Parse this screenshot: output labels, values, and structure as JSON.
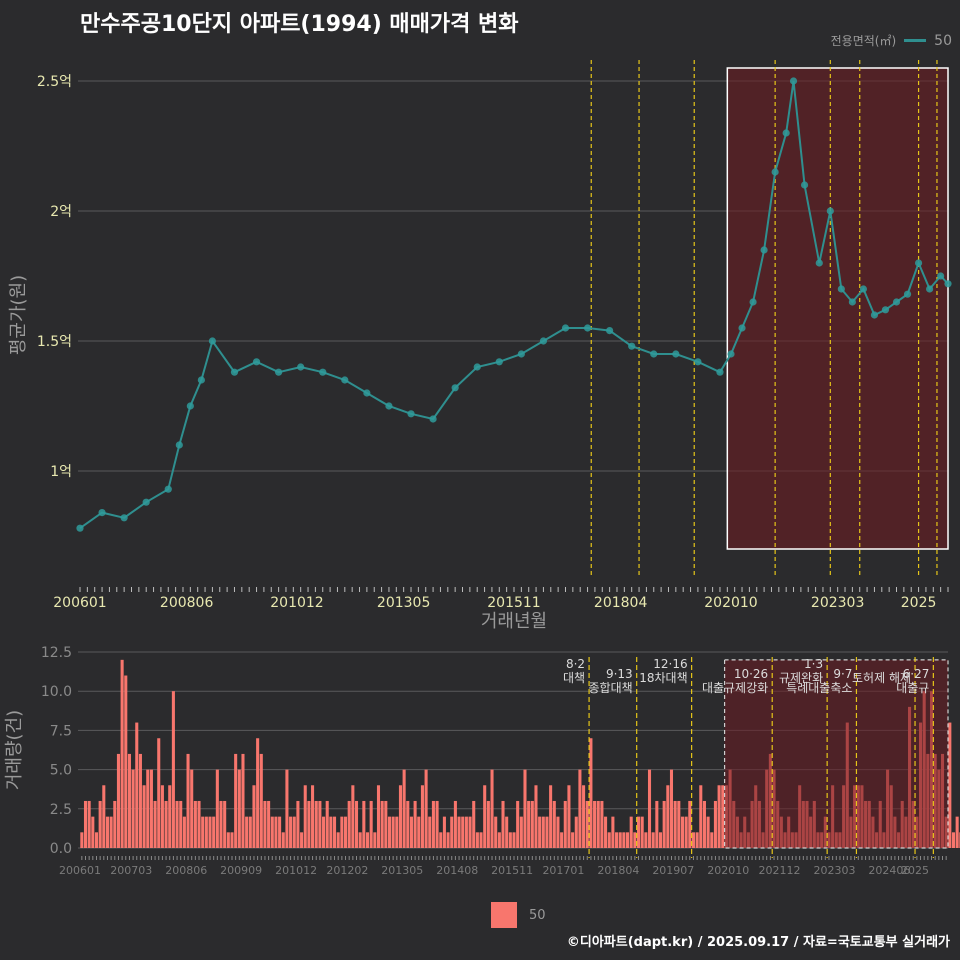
{
  "title": "만수주공10단지 아파트(1994) 매매가격 변화",
  "legend": {
    "title": "전용면적(㎡)",
    "series_label": "50"
  },
  "credit": "©디아파트(dapt.kr) / 2025.09.17 / 자료=국토교통부 실거래가",
  "colors": {
    "line": "#2f8f8f",
    "point": "#2f9b9b",
    "bar": "#f8766d",
    "policy": "#e6c619",
    "highlight": "#6b1c22"
  },
  "chart_data": [
    {
      "type": "line",
      "title": "만수주공10단지 아파트(1994) 매매가격 변화",
      "xlabel": "거래년월",
      "ylabel": "평균가(원)",
      "x_range": [
        "2006-01",
        "2025-09"
      ],
      "x_ticks": [
        "200601",
        "200806",
        "201012",
        "201305",
        "201511",
        "201804",
        "202010",
        "202303",
        "2025"
      ],
      "y_ticks": [
        {
          "value": 1.0,
          "label": "1억"
        },
        {
          "value": 1.5,
          "label": "1.5억"
        },
        {
          "value": 2.0,
          "label": "2억"
        },
        {
          "value": 2.5,
          "label": "2.5억"
        }
      ],
      "ylim": [
        0.6,
        2.6
      ],
      "highlight_period": [
        "2020-09",
        "2025-09"
      ],
      "policy_lines": [
        "2017-08",
        "2018-09",
        "2019-12",
        "2021-10",
        "2023-01",
        "2023-09",
        "2025-01",
        "2025-06"
      ],
      "series": [
        {
          "name": "50",
          "x": [
            "2006-01",
            "2006-07",
            "2007-01",
            "2007-07",
            "2008-01",
            "2008-04",
            "2008-07",
            "2008-10",
            "2009-01",
            "2009-07",
            "2010-01",
            "2010-07",
            "2011-01",
            "2011-07",
            "2012-01",
            "2012-07",
            "2013-01",
            "2013-07",
            "2014-01",
            "2014-07",
            "2015-01",
            "2015-07",
            "2016-01",
            "2016-07",
            "2017-01",
            "2017-07",
            "2018-01",
            "2018-07",
            "2019-01",
            "2019-07",
            "2020-01",
            "2020-07",
            "2020-10",
            "2021-01",
            "2021-04",
            "2021-07",
            "2021-10",
            "2022-01",
            "2022-03",
            "2022-06",
            "2022-10",
            "2023-01",
            "2023-04",
            "2023-07",
            "2023-10",
            "2024-01",
            "2024-04",
            "2024-07",
            "2024-10",
            "2025-01",
            "2025-04",
            "2025-07",
            "2025-09"
          ],
          "values": [
            0.78,
            0.84,
            0.82,
            0.88,
            0.93,
            1.1,
            1.25,
            1.35,
            1.5,
            1.38,
            1.42,
            1.38,
            1.4,
            1.38,
            1.35,
            1.3,
            1.25,
            1.22,
            1.2,
            1.32,
            1.4,
            1.42,
            1.45,
            1.5,
            1.55,
            1.55,
            1.54,
            1.48,
            1.45,
            1.45,
            1.42,
            1.38,
            1.45,
            1.55,
            1.65,
            1.85,
            2.15,
            2.3,
            2.5,
            2.1,
            1.8,
            2.0,
            1.7,
            1.65,
            1.7,
            1.6,
            1.62,
            1.65,
            1.68,
            1.8,
            1.7,
            1.75,
            1.72
          ]
        }
      ]
    },
    {
      "type": "bar",
      "xlabel": "",
      "ylabel": "거래량(건)",
      "x_range": [
        "2006-01",
        "2025-09"
      ],
      "x_ticks": [
        "200601",
        "200703",
        "200806",
        "200909",
        "201012",
        "201202",
        "201305",
        "201408",
        "201511",
        "201701",
        "201804",
        "201907",
        "202010",
        "202112",
        "202303",
        "202406",
        "2025"
      ],
      "y_ticks": [
        {
          "value": 0,
          "label": "0.0"
        },
        {
          "value": 2.5,
          "label": "2.5"
        },
        {
          "value": 5,
          "label": "5.0"
        },
        {
          "value": 7.5,
          "label": "7.5"
        },
        {
          "value": 10,
          "label": "10.0"
        },
        {
          "value": 12.5,
          "label": "12.5"
        }
      ],
      "ylim": [
        0,
        12.5
      ],
      "highlight_period": [
        "2020-09",
        "2025-09"
      ],
      "policy_labels": [
        {
          "x": "2017-08",
          "date": "8·2",
          "text": "대책"
        },
        {
          "x": "2018-09",
          "date": "9·13",
          "text": "종합대책"
        },
        {
          "x": "2019-12",
          "date": "12·16",
          "text": "18차대책"
        },
        {
          "x": "2021-10",
          "date": "10·26",
          "text": "대출규제강화"
        },
        {
          "x": "2023-01",
          "date": "1·3",
          "text": "규제완화"
        },
        {
          "x": "2023-09",
          "date": "9·7",
          "text": "특례대출축소"
        },
        {
          "x": "2025-01",
          "date": "",
          "text": "토허제 해제"
        },
        {
          "x": "2025-06",
          "date": "6·27",
          "text": "대출규"
        }
      ],
      "series": [
        {
          "name": "50",
          "values": [
            1,
            3,
            3,
            2,
            1,
            3,
            4,
            2,
            2,
            3,
            6,
            12,
            11,
            6,
            5,
            8,
            6,
            4,
            5,
            5,
            3,
            7,
            4,
            3,
            4,
            10,
            3,
            3,
            2,
            6,
            5,
            3,
            3,
            2,
            2,
            2,
            2,
            5,
            3,
            3,
            1,
            1,
            6,
            5,
            6,
            2,
            2,
            4,
            7,
            6,
            3,
            3,
            2,
            2,
            2,
            1,
            5,
            2,
            2,
            3,
            1,
            4,
            3,
            4,
            3,
            3,
            2,
            3,
            2,
            2,
            1,
            2,
            2,
            3,
            4,
            3,
            1,
            3,
            1,
            3,
            1,
            4,
            3,
            3,
            2,
            2,
            2,
            4,
            5,
            3,
            2,
            3,
            2,
            4,
            5,
            2,
            3,
            3,
            1,
            2,
            1,
            2,
            3,
            2,
            2,
            2,
            2,
            3,
            1,
            1,
            4,
            3,
            5,
            2,
            1,
            3,
            2,
            1,
            1,
            3,
            2,
            5,
            3,
            3,
            4,
            2,
            2,
            2,
            4,
            3,
            2,
            1,
            3,
            4,
            1,
            2,
            5,
            4,
            3,
            7,
            3,
            3,
            3,
            2,
            1,
            2,
            1,
            1,
            1,
            1,
            2,
            1,
            2,
            2,
            1,
            5,
            1,
            3,
            1,
            3,
            4,
            5,
            3,
            3,
            2,
            2,
            3,
            1,
            1,
            4,
            3,
            2,
            1,
            3,
            4,
            4,
            4,
            5,
            3,
            2,
            1,
            2,
            1,
            3,
            4,
            3,
            1,
            5,
            6,
            5,
            3,
            2,
            1,
            2,
            1,
            1,
            4,
            3,
            3,
            2,
            3,
            1,
            1,
            2,
            1,
            4,
            1,
            1,
            4,
            8,
            2,
            4,
            4,
            4,
            3,
            3,
            2,
            1,
            3,
            1,
            5,
            4,
            2,
            1,
            3,
            2,
            9,
            3,
            2,
            8,
            10,
            6,
            10,
            6,
            5,
            6,
            2,
            8,
            1,
            2,
            1,
            1,
            1,
            1,
            1,
            1,
            1,
            2,
            1,
            1,
            2,
            1,
            2,
            1,
            1,
            1,
            1,
            2,
            1,
            5,
            2,
            1,
            3,
            2,
            1,
            2,
            2,
            1,
            1,
            4,
            2,
            2,
            2,
            3,
            4,
            3,
            1,
            2,
            1,
            1,
            2,
            1,
            1,
            1,
            1,
            1,
            2,
            1,
            1,
            2,
            1,
            2,
            3,
            1,
            3,
            3,
            1,
            2,
            1,
            1,
            1,
            1,
            3
          ]
        }
      ]
    }
  ]
}
